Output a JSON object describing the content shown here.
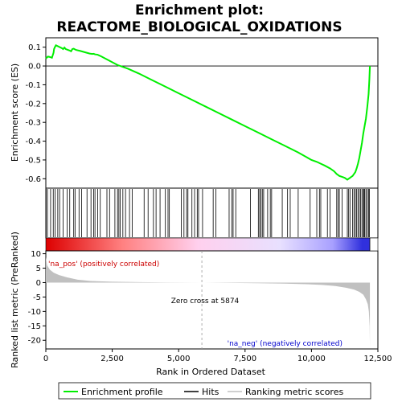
{
  "chart_data": {
    "type": "line",
    "title_line1": "Enrichment plot:",
    "title_line2": "REACTOME_BIOLOGICAL_OXIDATIONS",
    "es_panel": {
      "ylabel": "Enrichment score (ES)",
      "ylim": [
        -0.65,
        0.15
      ],
      "yticks": [
        0.1,
        0.0,
        -0.1,
        -0.2,
        -0.3,
        -0.4,
        -0.5,
        -0.6
      ],
      "ytick_labels": [
        "0.1",
        "0.0",
        "-0.1",
        "-0.2",
        "-0.3",
        "-0.4",
        "-0.5",
        "-0.6"
      ],
      "line_color": "#00ee00",
      "series": [
        {
          "name": "Enrichment profile",
          "x": [
            0,
            80,
            150,
            230,
            290,
            310,
            340,
            380,
            600,
            650,
            700,
            750,
            900,
            950,
            1000,
            1050,
            1100,
            1150,
            1300,
            1500,
            1650,
            1750,
            1800,
            1850,
            1950,
            2100,
            2300,
            2500,
            2700,
            2900,
            3100,
            3500,
            4000,
            4500,
            5000,
            5500,
            6000,
            6500,
            7000,
            7500,
            8000,
            8500,
            9000,
            9500,
            10000,
            10200,
            10350,
            10500,
            10700,
            10850,
            10950,
            11050,
            11150,
            11250,
            11300,
            11350,
            11400,
            11450,
            11500,
            11550,
            11600,
            11650,
            11700,
            11750,
            11800,
            11850,
            11900,
            11950,
            12000,
            12050,
            12100,
            12150,
            12180,
            12200
          ],
          "y": [
            0.04,
            0.05,
            0.048,
            0.044,
            0.07,
            0.09,
            0.1,
            0.11,
            0.095,
            0.09,
            0.098,
            0.09,
            0.082,
            0.078,
            0.09,
            0.092,
            0.088,
            0.085,
            0.08,
            0.072,
            0.066,
            0.064,
            0.065,
            0.062,
            0.06,
            0.05,
            0.035,
            0.02,
            0.005,
            -0.005,
            -0.015,
            -0.04,
            -0.075,
            -0.11,
            -0.145,
            -0.18,
            -0.215,
            -0.25,
            -0.285,
            -0.32,
            -0.355,
            -0.39,
            -0.425,
            -0.46,
            -0.5,
            -0.51,
            -0.52,
            -0.53,
            -0.545,
            -0.56,
            -0.575,
            -0.585,
            -0.59,
            -0.595,
            -0.6,
            -0.605,
            -0.6,
            -0.595,
            -0.59,
            -0.585,
            -0.575,
            -0.565,
            -0.545,
            -0.52,
            -0.49,
            -0.45,
            -0.41,
            -0.36,
            -0.32,
            -0.28,
            -0.22,
            -0.15,
            -0.07,
            0.0
          ]
        }
      ]
    },
    "hits": [
      10,
      60,
      180,
      280,
      350,
      450,
      520,
      650,
      800,
      900,
      1050,
      1100,
      1250,
      1350,
      1550,
      1700,
      1800,
      1850,
      1950,
      2050,
      2300,
      2400,
      2600,
      2700,
      2750,
      2800,
      2900,
      3000,
      3150,
      3250,
      3700,
      3850,
      4050,
      4150,
      4300,
      4500,
      4600,
      4650,
      5100,
      5200,
      5300,
      5350,
      5500,
      5600,
      5700,
      5750,
      5900,
      6300,
      6400,
      6900,
      7000,
      7050,
      7150,
      7700,
      8000,
      8050,
      8100,
      8150,
      8200,
      8350,
      8450,
      8500,
      8900,
      9100,
      9200,
      9500,
      9950,
      10200,
      10300,
      10350,
      10600,
      10700,
      10950,
      11000,
      11050,
      11150,
      11350,
      11400,
      11450,
      11550,
      11600,
      11650,
      11700,
      11750,
      11800,
      11850,
      11900,
      11950,
      11980,
      12000,
      12050,
      12100,
      12150,
      12180
    ],
    "bar_gradient": {
      "split_position": 5874,
      "colors": [
        "#dd0000",
        "#ff8080",
        "#ffd0ee",
        "#e8e0ff",
        "#a8a0ff",
        "#3030dd"
      ]
    },
    "metric_panel": {
      "ylabel": "Ranked list metric (PreRanked)",
      "ylim": [
        -23,
        11
      ],
      "yticks": [
        10,
        5,
        0,
        -5,
        -10,
        -15,
        -20
      ],
      "ytick_labels": [
        "10",
        "5",
        "0",
        "-5",
        "-10",
        "-15",
        "-20"
      ],
      "fill_color": "#c0c0c0",
      "x": [
        0,
        50,
        150,
        300,
        500,
        800,
        1200,
        1700,
        2500,
        3500,
        4500,
        5874,
        7000,
        8000,
        9000,
        9800,
        10400,
        10900,
        11300,
        11600,
        11800,
        11950,
        12050,
        12120,
        12160,
        12190,
        12200
      ],
      "y": [
        8.8,
        6.0,
        4.5,
        3.4,
        2.6,
        1.8,
        1.0,
        0.55,
        0.3,
        0.15,
        0.07,
        0.0,
        -0.1,
        -0.2,
        -0.35,
        -0.55,
        -0.8,
        -1.2,
        -1.8,
        -2.4,
        -3.2,
        -4.2,
        -5.8,
        -7.5,
        -10.0,
        -15.0,
        -22.5
      ],
      "pos_label": "'na_pos' (positively correlated)",
      "neg_label": "'na_neg' (negatively correlated)",
      "zero_cross_label": "Zero cross at 5874",
      "pos_color": "#cc0000",
      "neg_color": "#0000cc"
    },
    "xaxis": {
      "xlabel": "Rank in Ordered Dataset",
      "xlim": [
        0,
        12500
      ],
      "xticks": [
        0,
        2500,
        5000,
        7500,
        10000,
        12500
      ],
      "xtick_labels": [
        "0",
        "2,500",
        "5,000",
        "7,500",
        "10,000",
        "12,500"
      ]
    },
    "legend": {
      "items": [
        {
          "label": "Enrichment profile",
          "color": "#00ee00"
        },
        {
          "label": "Hits",
          "color": "#000000"
        },
        {
          "label": "Ranking metric scores",
          "color": "#c0c0c0"
        }
      ]
    }
  }
}
